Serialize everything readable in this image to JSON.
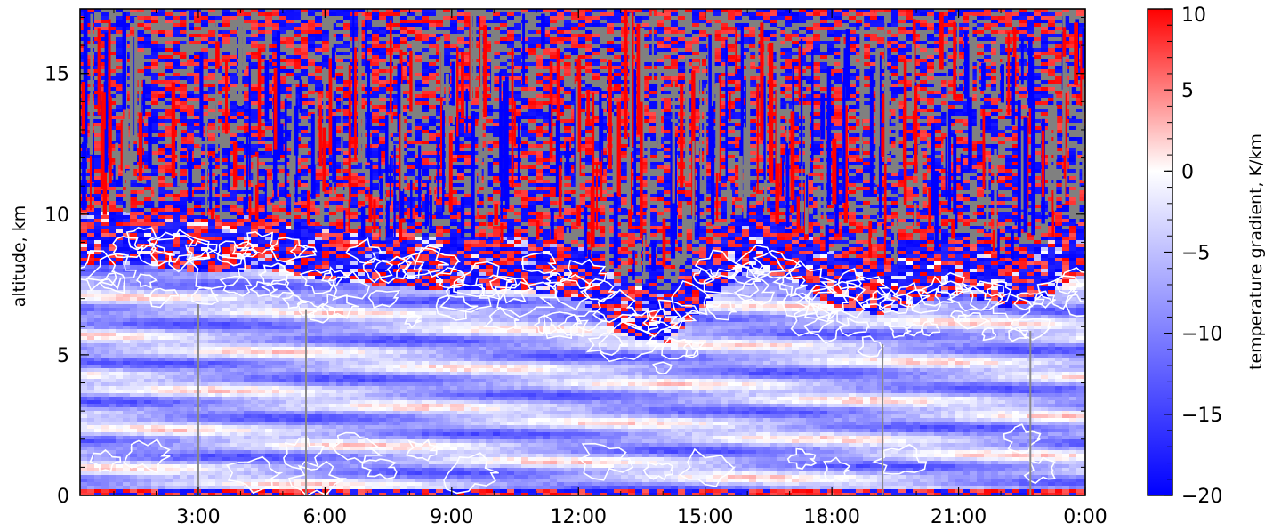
{
  "chart_data": {
    "type": "heatmap",
    "title": "",
    "xlabel": "",
    "ylabel": "altitude, km",
    "x_ticks": [
      "3:00",
      "6:00",
      "9:00",
      "12:00",
      "15:00",
      "18:00",
      "21:00",
      "0:00"
    ],
    "x_tick_hours": [
      3,
      6,
      9,
      12,
      15,
      18,
      21,
      24
    ],
    "xlim": [
      0.2,
      24
    ],
    "y_ticks": [
      "0",
      "5",
      "10",
      "15"
    ],
    "y_tick_values": [
      0,
      5,
      10,
      15
    ],
    "ylim": [
      0,
      17.3
    ],
    "colorbar": {
      "label": "temperature gradient, K/km",
      "ticks": [
        "10",
        "5",
        "0",
        "−5",
        "−10",
        "−15",
        "−20"
      ],
      "tick_values": [
        10,
        5,
        0,
        -5,
        -10,
        -15,
        -20
      ],
      "range": [
        -20,
        10
      ],
      "colors": {
        "min": "#0000ff",
        "mid": "#ffffff",
        "max": "#ff0000"
      }
    },
    "missing_color": "#808080",
    "contour_color": "#ffffff",
    "vertical_marker_hours": [
      3.0,
      5.55,
      19.2,
      22.7
    ],
    "tropopause_km": [
      [
        0.2,
        8.5
      ],
      [
        1.5,
        8.6
      ],
      [
        3.0,
        8.3
      ],
      [
        4.5,
        8.4
      ],
      [
        6.0,
        8.0
      ],
      [
        7.5,
        7.8
      ],
      [
        9.0,
        7.6
      ],
      [
        10.5,
        7.7
      ],
      [
        12.0,
        7.3
      ],
      [
        13.0,
        6.0
      ],
      [
        14.0,
        5.8
      ],
      [
        15.0,
        7.3
      ],
      [
        16.0,
        8.5
      ],
      [
        17.0,
        8.0
      ],
      [
        18.0,
        7.0
      ],
      [
        19.0,
        6.8
      ],
      [
        20.0,
        7.2
      ],
      [
        21.0,
        7.6
      ],
      [
        22.0,
        7.0
      ],
      [
        23.0,
        7.5
      ],
      [
        24.0,
        8.4
      ]
    ]
  }
}
